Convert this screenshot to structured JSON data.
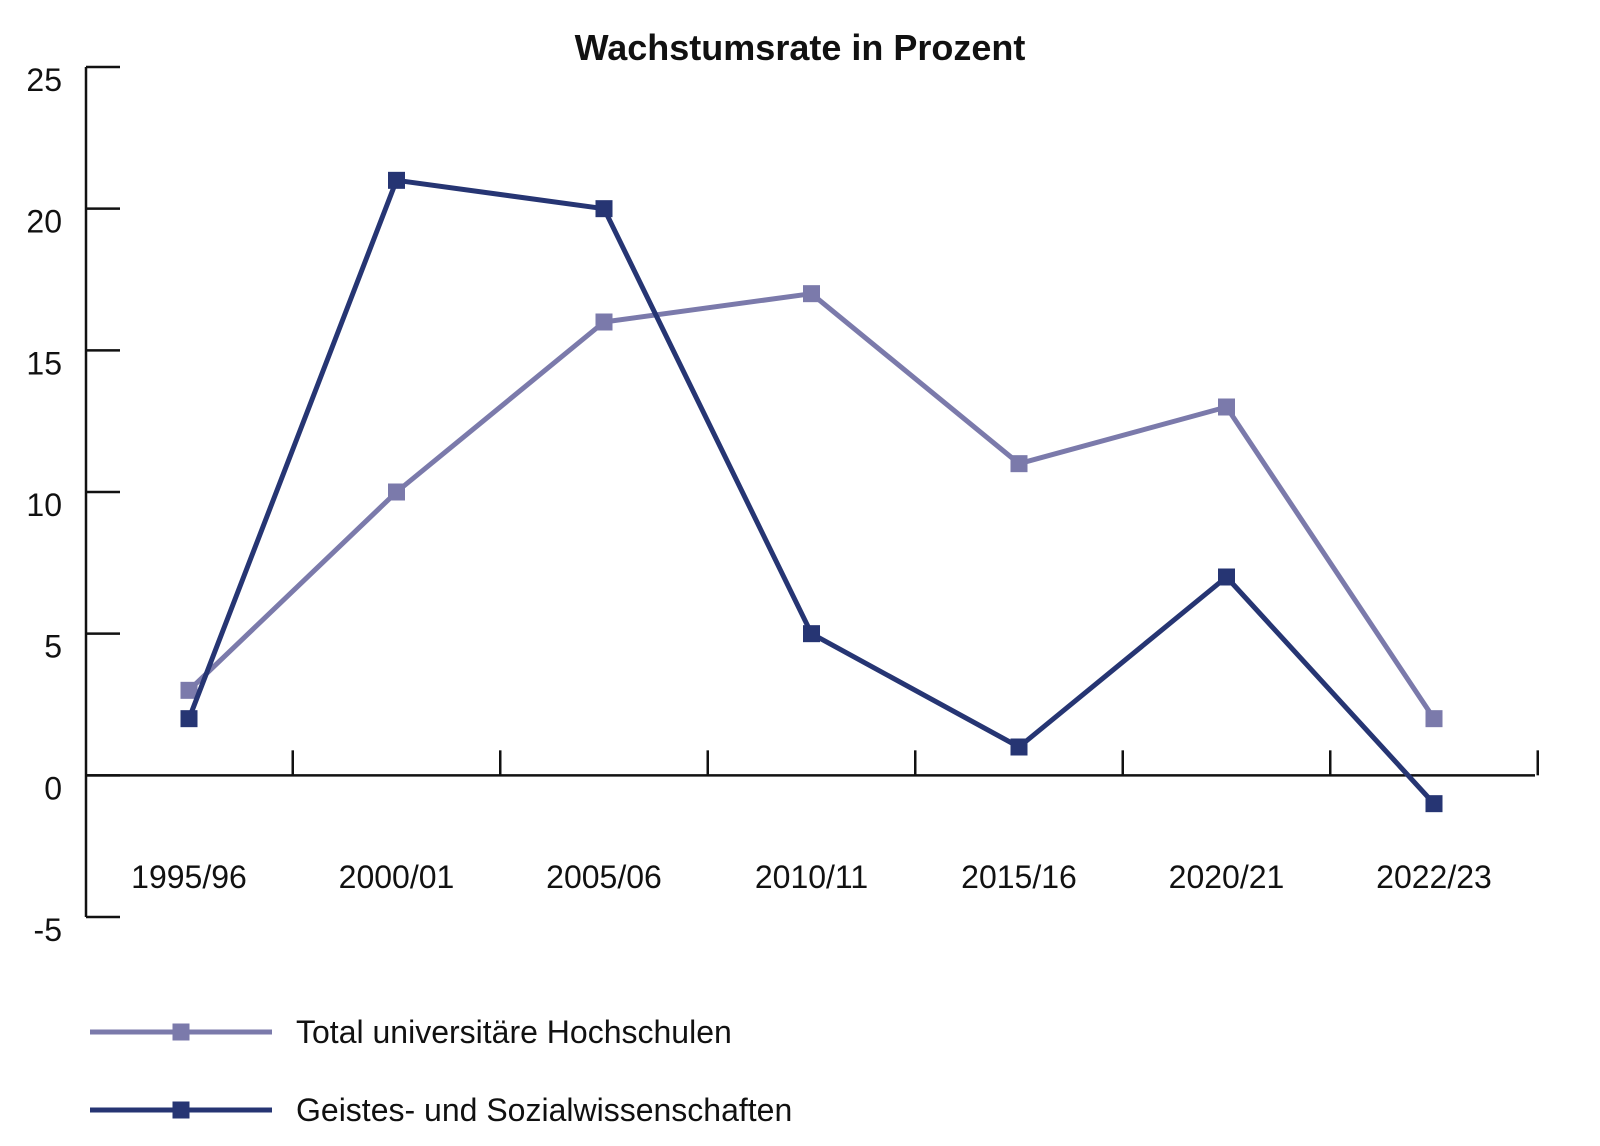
{
  "chart_data": {
    "type": "line",
    "title": "Wachstumsrate in Prozent",
    "xlabel": "",
    "ylabel": "",
    "categories": [
      "1995/96",
      "2000/01",
      "2005/06",
      "2010/11",
      "2015/16",
      "2020/21",
      "2022/23"
    ],
    "y_ticks": [
      "25",
      "20",
      "15",
      "10",
      "5",
      "0",
      "-5"
    ],
    "ylim": [
      -5,
      25
    ],
    "grid": false,
    "legend_position": "bottom-left",
    "series": [
      {
        "name": "Total universitäre Hochschulen",
        "color": "#7b7aab",
        "marker": "square",
        "values": [
          3,
          10,
          16,
          17,
          11,
          13,
          2
        ]
      },
      {
        "name": "Geistes- und Sozialwissenschaften",
        "color": "#263573",
        "marker": "square",
        "values": [
          2,
          21,
          20,
          5,
          1,
          7,
          -1
        ]
      }
    ]
  }
}
